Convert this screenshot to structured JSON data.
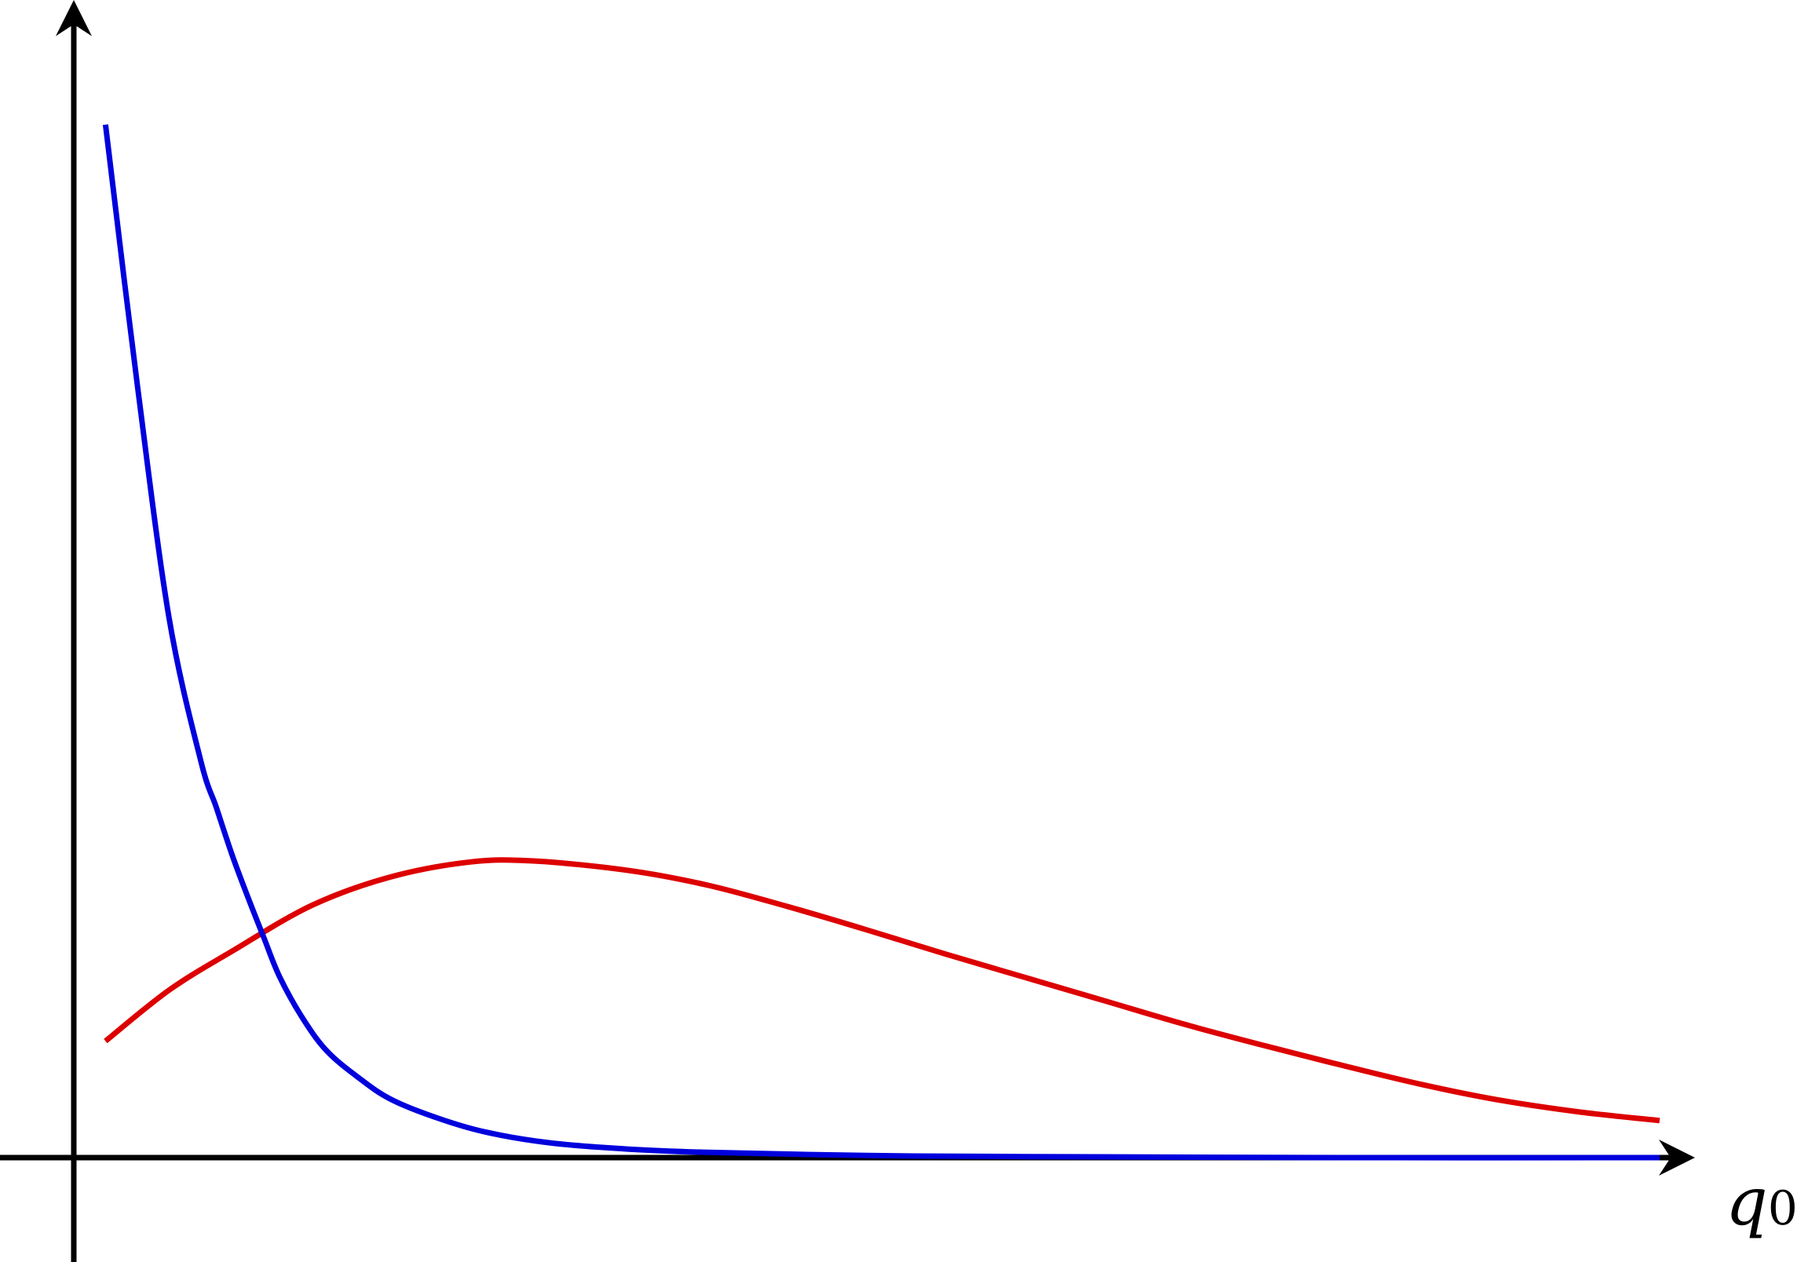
{
  "chart_data": {
    "type": "line",
    "title": "",
    "xlabel": {
      "variable": "q",
      "subscript": "0"
    },
    "ylabel": "",
    "xlim": [
      0,
      10
    ],
    "ylim": [
      0,
      10
    ],
    "grid": false,
    "legend": "none",
    "axis_style": "arrowed",
    "series": [
      {
        "color": "#0000dd",
        "x": [
          0.2,
          0.4,
          0.6,
          0.8,
          0.9,
          1.0,
          1.1,
          1.2,
          1.3,
          1.45,
          1.6,
          1.8,
          2.0,
          2.3,
          2.6,
          3.0,
          3.5,
          4.0,
          5.0,
          6.0,
          8.0,
          10.0
        ],
        "y": [
          9.75,
          7.3,
          5.1,
          3.75,
          3.3,
          2.85,
          2.45,
          2.07,
          1.7,
          1.3,
          1.0,
          0.75,
          0.55,
          0.37,
          0.24,
          0.14,
          0.08,
          0.05,
          0.02,
          0.01,
          0.0,
          0.0
        ]
      },
      {
        "color": "#dd0000",
        "x": [
          0.2,
          0.6,
          1.0,
          1.5,
          2.0,
          2.5,
          2.9,
          3.5,
          4.0,
          4.5,
          5.0,
          5.5,
          6.0,
          6.5,
          7.0,
          7.5,
          8.0,
          8.5,
          9.0,
          9.5,
          10.0
        ],
        "y": [
          1.1,
          1.58,
          1.95,
          2.38,
          2.65,
          2.79,
          2.8,
          2.71,
          2.57,
          2.37,
          2.15,
          1.92,
          1.7,
          1.48,
          1.26,
          1.06,
          0.87,
          0.69,
          0.54,
          0.43,
          0.35
        ]
      }
    ]
  }
}
